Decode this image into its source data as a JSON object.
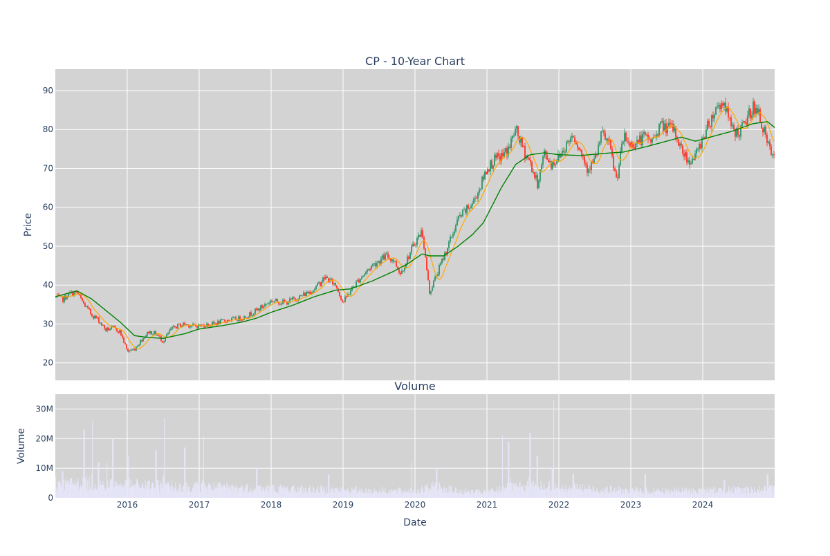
{
  "chart_data": [
    {
      "type": "candlestick",
      "title": "CP - 10-Year Chart",
      "ylabel": "Price",
      "ylim": [
        15.5,
        95.5
      ],
      "yticks": [
        20,
        30,
        40,
        50,
        60,
        70,
        80,
        90
      ],
      "xlim": [
        2015.0,
        2025.0
      ],
      "xticks": [
        "2016",
        "2017",
        "2018",
        "2019",
        "2020",
        "2021",
        "2022",
        "2023",
        "2024"
      ],
      "grid": true,
      "colors": {
        "up": "#3d9970",
        "down": "#ff4136",
        "ma_short": "#ffa500",
        "ma_long": "#008000",
        "plot_bg": "#d3d3d3"
      },
      "price_anchors": [
        [
          2015.0,
          37.0
        ],
        [
          2015.1,
          36.3
        ],
        [
          2015.2,
          37.8
        ],
        [
          2015.3,
          38.0
        ],
        [
          2015.4,
          35.0
        ],
        [
          2015.5,
          32.5
        ],
        [
          2015.6,
          31.0
        ],
        [
          2015.7,
          28.5
        ],
        [
          2015.8,
          29.0
        ],
        [
          2015.9,
          28.0
        ],
        [
          2016.0,
          23.0
        ],
        [
          2016.1,
          23.5
        ],
        [
          2016.2,
          26.0
        ],
        [
          2016.3,
          28.0
        ],
        [
          2016.4,
          27.5
        ],
        [
          2016.5,
          25.5
        ],
        [
          2016.6,
          28.5
        ],
        [
          2016.7,
          29.5
        ],
        [
          2016.8,
          30.0
        ],
        [
          2016.9,
          29.5
        ],
        [
          2017.0,
          29.5
        ],
        [
          2017.2,
          30.0
        ],
        [
          2017.4,
          31.0
        ],
        [
          2017.6,
          31.5
        ],
        [
          2017.8,
          33.5
        ],
        [
          2018.0,
          36.0
        ],
        [
          2018.2,
          35.5
        ],
        [
          2018.4,
          37.0
        ],
        [
          2018.6,
          39.0
        ],
        [
          2018.75,
          42.0
        ],
        [
          2018.9,
          40.0
        ],
        [
          2019.0,
          35.5
        ],
        [
          2019.1,
          38.5
        ],
        [
          2019.2,
          41.0
        ],
        [
          2019.4,
          45.0
        ],
        [
          2019.6,
          47.5
        ],
        [
          2019.7,
          46.5
        ],
        [
          2019.8,
          43.0
        ],
        [
          2019.9,
          47.0
        ],
        [
          2020.0,
          51.0
        ],
        [
          2020.1,
          54.0
        ],
        [
          2020.2,
          38.0
        ],
        [
          2020.35,
          45.0
        ],
        [
          2020.5,
          52.0
        ],
        [
          2020.6,
          57.0
        ],
        [
          2020.8,
          61.0
        ],
        [
          2020.9,
          65.0
        ],
        [
          2021.0,
          70.0
        ],
        [
          2021.1,
          72.0
        ],
        [
          2021.2,
          73.0
        ],
        [
          2021.3,
          75.0
        ],
        [
          2021.4,
          80.0
        ],
        [
          2021.5,
          75.0
        ],
        [
          2021.6,
          71.5
        ],
        [
          2021.7,
          66.0
        ],
        [
          2021.8,
          74.0
        ],
        [
          2021.9,
          71.0
        ],
        [
          2022.0,
          73.0
        ],
        [
          2022.2,
          79.0
        ],
        [
          2022.4,
          70.0
        ],
        [
          2022.5,
          72.0
        ],
        [
          2022.6,
          79.0
        ],
        [
          2022.7,
          76.0
        ],
        [
          2022.8,
          67.0
        ],
        [
          2022.9,
          78.0
        ],
        [
          2023.0,
          76.0
        ],
        [
          2023.2,
          78.0
        ],
        [
          2023.3,
          77.0
        ],
        [
          2023.4,
          81.0
        ],
        [
          2023.6,
          80.0
        ],
        [
          2023.7,
          75.0
        ],
        [
          2023.8,
          72.0
        ],
        [
          2023.9,
          73.0
        ],
        [
          2024.0,
          78.0
        ],
        [
          2024.2,
          86.0
        ],
        [
          2024.3,
          87.0
        ],
        [
          2024.4,
          80.0
        ],
        [
          2024.5,
          79.0
        ],
        [
          2024.6,
          82.0
        ],
        [
          2024.7,
          86.0
        ],
        [
          2024.8,
          83.0
        ],
        [
          2024.9,
          76.0
        ],
        [
          2025.0,
          72.0
        ]
      ],
      "ma_long_anchors": [
        [
          2015.0,
          37.0
        ],
        [
          2015.3,
          38.5
        ],
        [
          2015.5,
          36.5
        ],
        [
          2015.7,
          33.5
        ],
        [
          2015.9,
          30.5
        ],
        [
          2016.1,
          27.0
        ],
        [
          2016.3,
          26.5
        ],
        [
          2016.5,
          26.3
        ],
        [
          2016.8,
          27.5
        ],
        [
          2017.0,
          28.7
        ],
        [
          2017.3,
          29.5
        ],
        [
          2017.6,
          30.5
        ],
        [
          2017.8,
          31.5
        ],
        [
          2018.0,
          33.0
        ],
        [
          2018.3,
          34.8
        ],
        [
          2018.6,
          37.0
        ],
        [
          2018.9,
          38.7
        ],
        [
          2019.1,
          39.0
        ],
        [
          2019.4,
          41.0
        ],
        [
          2019.7,
          43.5
        ],
        [
          2019.9,
          45.5
        ],
        [
          2020.1,
          48.0
        ],
        [
          2020.2,
          47.5
        ],
        [
          2020.4,
          47.5
        ],
        [
          2020.6,
          50.0
        ],
        [
          2020.8,
          53.0
        ],
        [
          2020.95,
          56.0
        ],
        [
          2021.2,
          65.0
        ],
        [
          2021.4,
          71.0
        ],
        [
          2021.6,
          73.5
        ],
        [
          2021.8,
          74.0
        ],
        [
          2022.0,
          73.5
        ],
        [
          2022.3,
          73.3
        ],
        [
          2022.6,
          73.8
        ],
        [
          2022.9,
          74.2
        ],
        [
          2023.2,
          75.5
        ],
        [
          2023.5,
          77.0
        ],
        [
          2023.7,
          78.0
        ],
        [
          2023.9,
          77.0
        ],
        [
          2024.2,
          78.5
        ],
        [
          2024.4,
          79.5
        ],
        [
          2024.7,
          81.5
        ],
        [
          2024.9,
          82.0
        ],
        [
          2025.0,
          80.5
        ]
      ]
    },
    {
      "type": "bar",
      "title": "Volume",
      "xlabel": "Date",
      "ylabel": "Volume",
      "ylim": [
        0,
        35000000
      ],
      "yticks": [
        0,
        10000000,
        20000000,
        30000000
      ],
      "ytick_labels": [
        "0",
        "10M",
        "20M",
        "30M"
      ],
      "xlim": [
        2015.0,
        2025.0
      ],
      "xticks": [
        "2016",
        "2017",
        "2018",
        "2019",
        "2020",
        "2021",
        "2022",
        "2023",
        "2024"
      ],
      "colors": {
        "bar": "#e6e6fa",
        "plot_bg": "#d3d3d3"
      },
      "volume_spikes": [
        [
          2015.1,
          9000000
        ],
        [
          2015.4,
          23000000
        ],
        [
          2015.52,
          26000000
        ],
        [
          2015.6,
          12000000
        ],
        [
          2015.72,
          12000000
        ],
        [
          2015.8,
          20000000
        ],
        [
          2016.02,
          14000000
        ],
        [
          2016.4,
          16000000
        ],
        [
          2016.52,
          27000000
        ],
        [
          2016.8,
          17000000
        ],
        [
          2017.06,
          21000000
        ],
        [
          2017.8,
          10000000
        ],
        [
          2018.8,
          8000000
        ],
        [
          2019.95,
          12000000
        ],
        [
          2020.3,
          10000000
        ],
        [
          2021.22,
          21000000
        ],
        [
          2021.3,
          19000000
        ],
        [
          2021.6,
          22000000
        ],
        [
          2021.7,
          14000000
        ],
        [
          2021.93,
          33000000
        ],
        [
          2022.2,
          8000000
        ],
        [
          2023.2,
          8000000
        ],
        [
          2024.3,
          6000000
        ],
        [
          2024.9,
          8000000
        ]
      ],
      "volume_base": [
        [
          2015.0,
          5000000
        ],
        [
          2016.0,
          4500000
        ],
        [
          2016.6,
          4000000
        ],
        [
          2017.5,
          3500000
        ],
        [
          2018.5,
          3000000
        ],
        [
          2019.5,
          2500000
        ],
        [
          2020.0,
          2300000
        ],
        [
          2020.3,
          4000000
        ],
        [
          2020.6,
          2200000
        ],
        [
          2021.0,
          2000000
        ],
        [
          2021.3,
          3500000
        ],
        [
          2021.7,
          4000000
        ],
        [
          2022.0,
          4000000
        ],
        [
          2022.5,
          3000000
        ],
        [
          2023.0,
          2500000
        ],
        [
          2024.0,
          2500000
        ],
        [
          2025.0,
          3000000
        ]
      ]
    }
  ]
}
